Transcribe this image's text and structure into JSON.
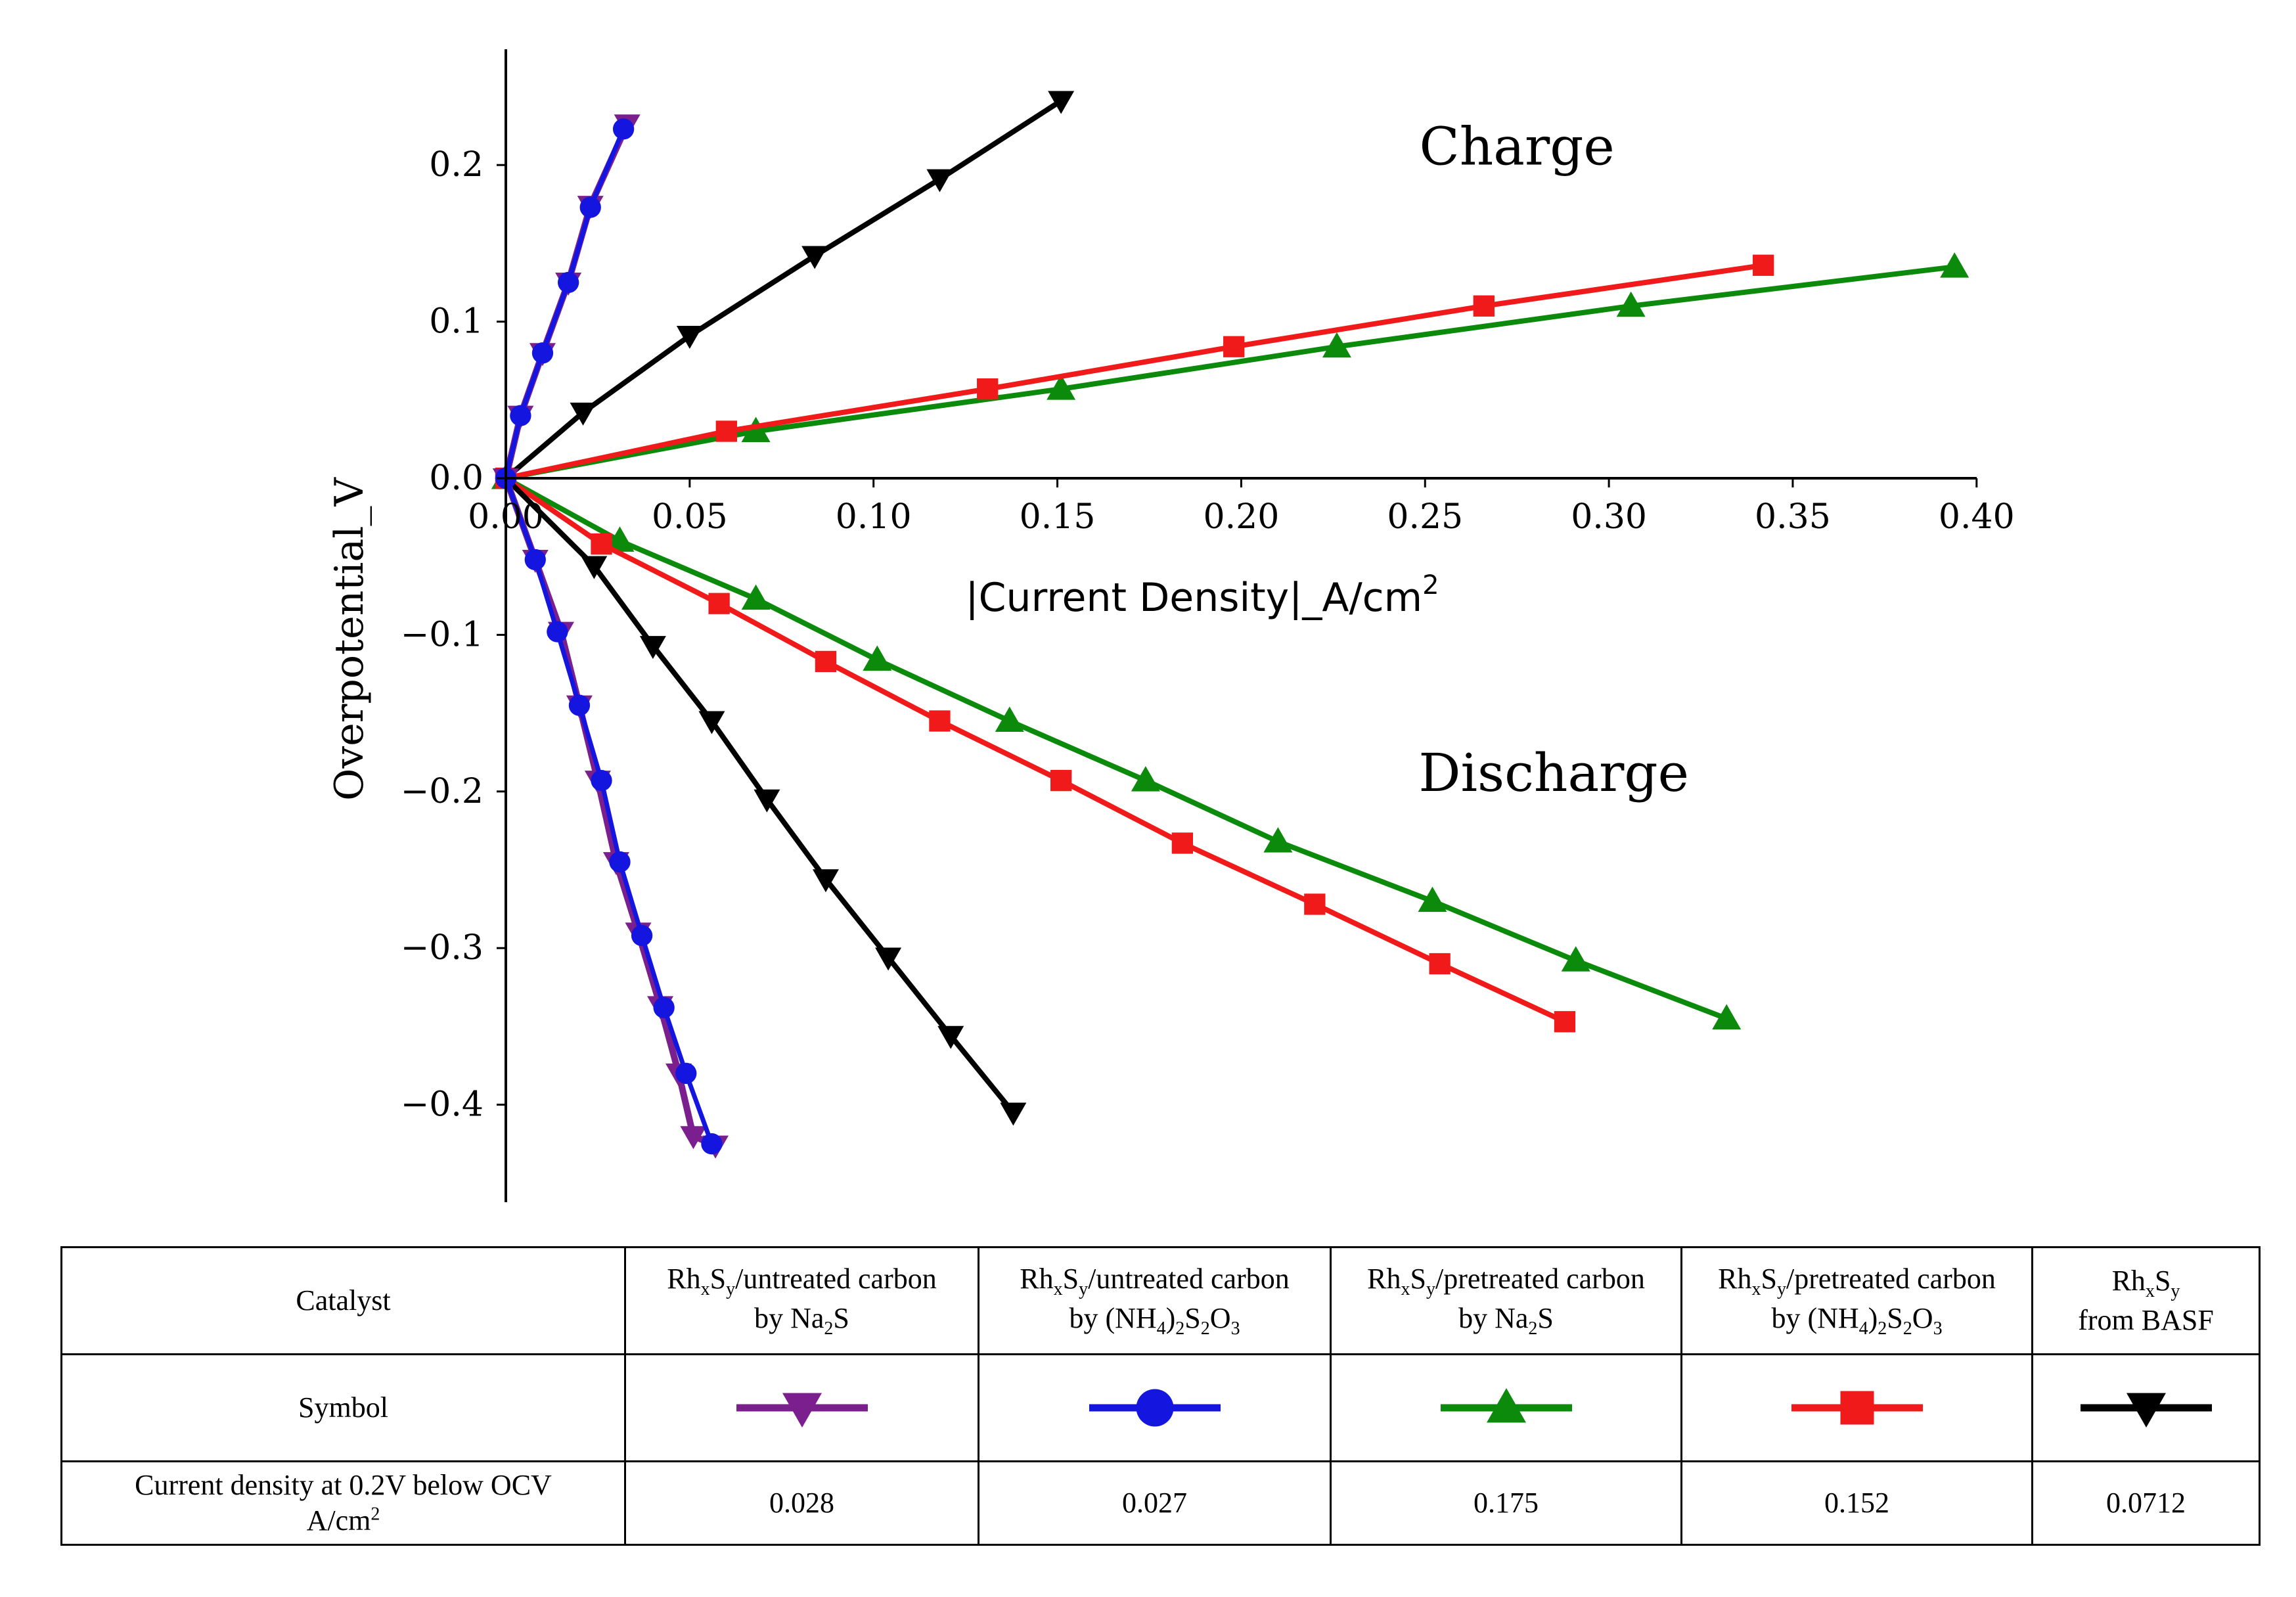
{
  "chart_data": {
    "type": "line",
    "title": "",
    "xlabel": "|Current Density|_A/cm",
    "xlabel_sup": "2",
    "ylabel": "Overpotential_V",
    "xlim": [
      0.0,
      0.415
    ],
    "ylim": [
      -0.465,
      0.26
    ],
    "x_ticks": [
      0.0,
      0.05,
      0.1,
      0.15,
      0.2,
      0.25,
      0.3,
      0.35,
      0.4
    ],
    "x_tick_labels": [
      "0.00",
      "0.05",
      "0.10",
      "0.15",
      "0.20",
      "0.25",
      "0.30",
      "0.35",
      "0.40"
    ],
    "y_ticks": [
      0.2,
      0.1,
      0.0,
      -0.1,
      -0.2,
      -0.3,
      -0.4
    ],
    "y_tick_labels": [
      "0.2",
      "0.1",
      "0.0",
      "−0.1",
      "−0.2",
      "−0.3",
      "−0.4"
    ],
    "annotations": [
      {
        "text": "Charge",
        "x": 0.275,
        "y": 0.212
      },
      {
        "text": "Discharge",
        "x": 0.285,
        "y": -0.188
      }
    ],
    "series": [
      {
        "name": "RhxSy/untreated carbon by Na2S",
        "color": "#7b1f8e",
        "marker": "triangle-down",
        "line_width": 10,
        "marker_size": 40,
        "charge": {
          "x": [
            0.0,
            0.004,
            0.01,
            0.017,
            0.023,
            0.033
          ],
          "y": [
            0.0,
            0.04,
            0.08,
            0.125,
            0.174,
            0.226
          ]
        },
        "discharge": {
          "x": [
            0.0,
            0.008,
            0.015,
            0.02,
            0.025,
            0.03,
            0.036,
            0.042,
            0.047,
            0.051,
            0.057
          ],
          "y": [
            0.0,
            -0.052,
            -0.098,
            -0.145,
            -0.193,
            -0.245,
            -0.29,
            -0.337,
            -0.38,
            -0.42,
            -0.426
          ]
        }
      },
      {
        "name": "RhxSy/untreated carbon by (NH4)2S2O3",
        "color": "#1515e0",
        "marker": "circle",
        "line_width": 7,
        "marker_size": 34,
        "charge": {
          "x": [
            0.0,
            0.004,
            0.01,
            0.017,
            0.023,
            0.032
          ],
          "y": [
            0.0,
            0.04,
            0.08,
            0.125,
            0.173,
            0.223
          ]
        },
        "discharge": {
          "x": [
            0.0,
            0.008,
            0.014,
            0.02,
            0.026,
            0.031,
            0.037,
            0.043,
            0.049,
            0.056
          ],
          "y": [
            0.0,
            -0.052,
            -0.098,
            -0.145,
            -0.193,
            -0.245,
            -0.292,
            -0.338,
            -0.38,
            -0.425
          ]
        }
      },
      {
        "name": "RhxSy/pretreated carbon by Na2S",
        "color": "#0b8a0b",
        "marker": "triangle-up",
        "line_width": 8,
        "marker_size": 44,
        "charge": {
          "x": [
            0.0,
            0.068,
            0.151,
            0.226,
            0.306,
            0.394
          ],
          "y": [
            0.0,
            0.03,
            0.057,
            0.084,
            0.11,
            0.135
          ]
        },
        "discharge": {
          "x": [
            0.0,
            0.031,
            0.068,
            0.101,
            0.137,
            0.174,
            0.21,
            0.252,
            0.291,
            0.332
          ],
          "y": [
            0.0,
            -0.04,
            -0.077,
            -0.116,
            -0.155,
            -0.193,
            -0.232,
            -0.27,
            -0.308,
            -0.345
          ]
        }
      },
      {
        "name": "RhxSy/pretreated carbon by (NH4)2S2O3",
        "color": "#f01a1a",
        "marker": "square",
        "line_width": 8,
        "marker_size": 38,
        "charge": {
          "x": [
            0.0,
            0.06,
            0.131,
            0.198,
            0.266,
            0.342
          ],
          "y": [
            0.0,
            0.03,
            0.057,
            0.084,
            0.11,
            0.136
          ]
        },
        "discharge": {
          "x": [
            0.0,
            0.026,
            0.058,
            0.087,
            0.118,
            0.151,
            0.184,
            0.22,
            0.254,
            0.288
          ],
          "y": [
            0.0,
            -0.042,
            -0.08,
            -0.117,
            -0.155,
            -0.193,
            -0.233,
            -0.272,
            -0.31,
            -0.347
          ]
        }
      },
      {
        "name": "RhxSy from BASF",
        "color": "#000000",
        "marker": "triangle-down",
        "line_width": 8,
        "marker_size": 40,
        "charge": {
          "x": [
            0.0,
            0.021,
            0.05,
            0.084,
            0.118,
            0.151
          ],
          "y": [
            0.0,
            0.042,
            0.091,
            0.142,
            0.191,
            0.241
          ]
        },
        "discharge": {
          "x": [
            0.0,
            0.024,
            0.04,
            0.056,
            0.071,
            0.087,
            0.104,
            0.121,
            0.138
          ],
          "y": [
            0.0,
            -0.056,
            -0.107,
            -0.155,
            -0.205,
            -0.256,
            -0.306,
            -0.356,
            -0.405
          ]
        }
      }
    ]
  },
  "table": {
    "row_catalyst_label": "Catalyst",
    "row_symbol_label": "Symbol",
    "row_density_label_line1": "Current density at 0.2V below OCV",
    "row_density_label_line2": "A/cm",
    "row_density_label_sup": "2",
    "catalysts": [
      {
        "rh": "Rh",
        "s": "S",
        "sub_x": "x",
        "sub_y": "y",
        "rest": "/untreated carbon",
        "by": "by Na",
        "by_sub": "2",
        "by_tail": "S",
        "by_sub2": "",
        "by_tail2": "",
        "by_sub3": "",
        "density": "0.028"
      },
      {
        "rh": "Rh",
        "s": "S",
        "sub_x": "x",
        "sub_y": "y",
        "rest": "/untreated carbon",
        "by": "by (NH",
        "by_sub": "4",
        "by_tail": ")",
        "by_sub2": "2",
        "by_tail2": "S",
        "by_sub3": "2",
        "by_tail3": "O",
        "by_sub4": "3",
        "density": "0.027"
      },
      {
        "rh": "Rh",
        "s": "S",
        "sub_x": "x",
        "sub_y": "y",
        "rest": "/pretreated carbon",
        "by": "by Na",
        "by_sub": "2",
        "by_tail": "S",
        "by_sub2": "",
        "by_tail2": "",
        "by_sub3": "",
        "density": "0.175"
      },
      {
        "rh": "Rh",
        "s": "S",
        "sub_x": "x",
        "sub_y": "y",
        "rest": "/pretreated carbon",
        "by": "by (NH",
        "by_sub": "4",
        "by_tail": ")",
        "by_sub2": "2",
        "by_tail2": "S",
        "by_sub3": "2",
        "by_tail3": "O",
        "by_sub4": "3",
        "density": "0.152"
      },
      {
        "rh": "Rh",
        "s": "S",
        "sub_x": "x",
        "sub_y": "y",
        "rest": "",
        "by": "from BASF",
        "by_sub": "",
        "by_tail": "",
        "by_sub2": "",
        "by_tail2": "",
        "by_sub3": "",
        "density": "0.0712"
      }
    ]
  }
}
